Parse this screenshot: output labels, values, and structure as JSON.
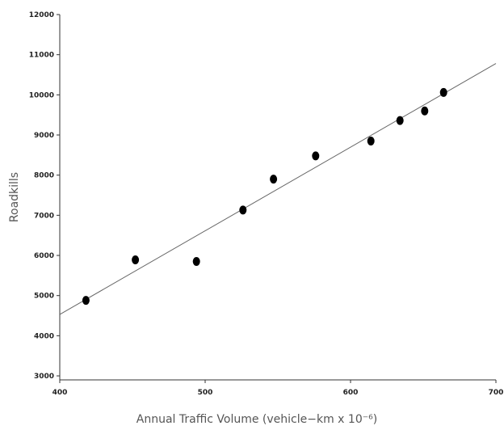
{
  "chart_data": {
    "type": "scatter",
    "title": "",
    "xlabel": "Annual Traffic Volume (vehicle−km x 10⁻⁶)",
    "ylabel": "Roadkills",
    "xlim": [
      400,
      700
    ],
    "ylim": [
      2900,
      12000
    ],
    "x_ticks": [
      "400",
      "500",
      "600",
      "700"
    ],
    "y_ticks": [
      "3000",
      "4000",
      "5000",
      "6000",
      "7000",
      "8000",
      "9000",
      "10000",
      "11000",
      "12000"
    ],
    "series": [
      {
        "x": [
          418,
          452,
          494,
          526,
          547,
          576,
          614,
          634,
          651,
          664
        ],
        "y": [
          4880,
          5890,
          5850,
          7130,
          7900,
          8480,
          8850,
          9360,
          9600,
          10060
        ]
      }
    ],
    "trendline": {
      "x": [
        400,
        700
      ],
      "y": [
        4530,
        10780
      ]
    },
    "grid": false,
    "legend": "none"
  }
}
